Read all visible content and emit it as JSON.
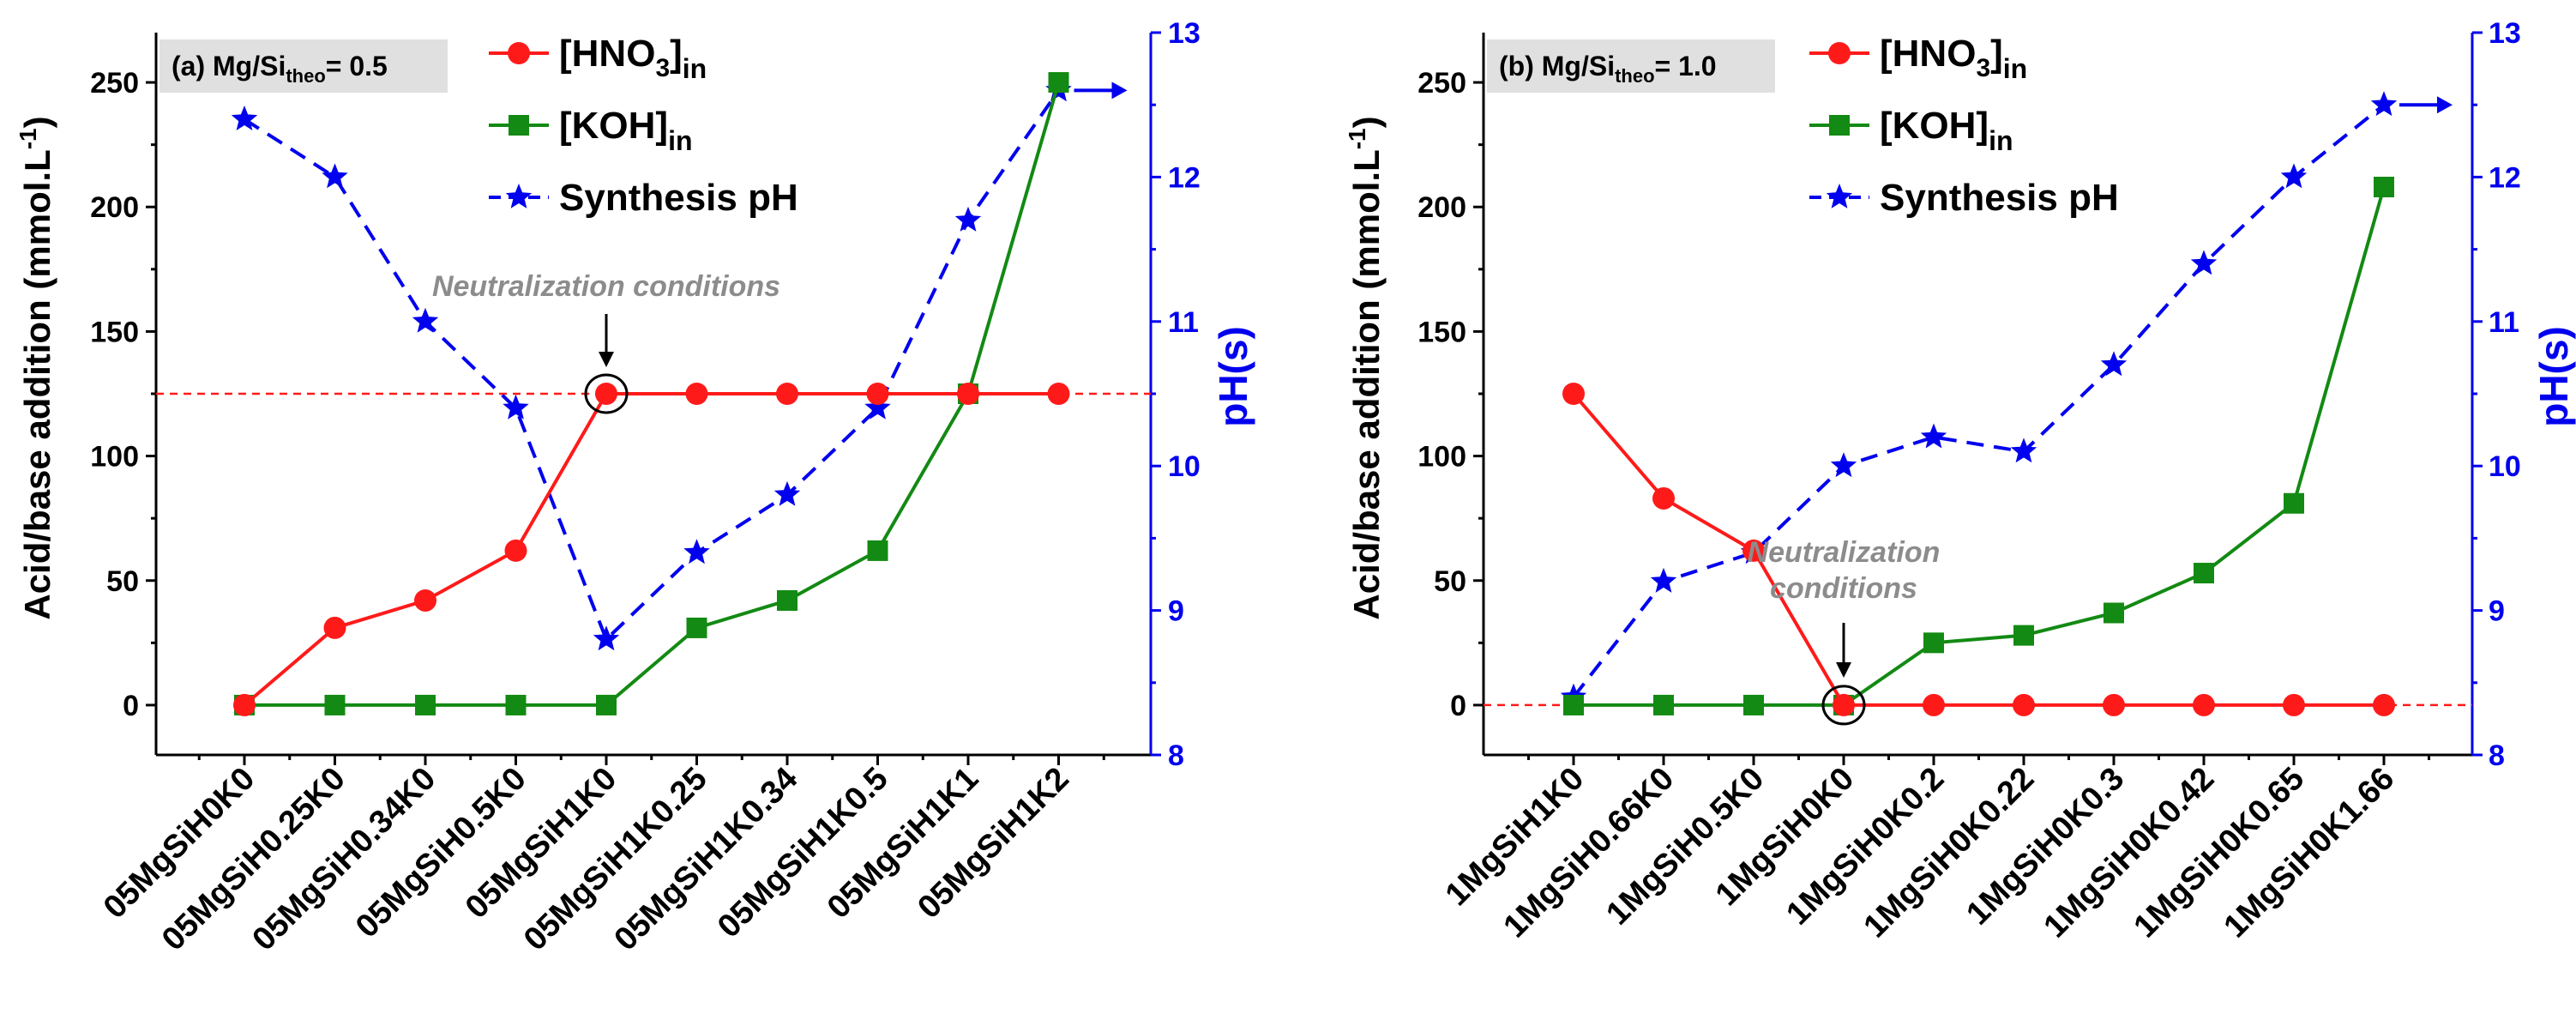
{
  "colors": {
    "hno3": "#ff1a1a",
    "koh": "#138a13",
    "ph": "#0000ee",
    "ref_line": "#ff1a1a",
    "title_box": "#e0e0e0",
    "annotation": "#8c8c8c"
  },
  "chart_data": [
    {
      "type": "line",
      "title_prefix": "(a) Mg/Si",
      "title_sub": "theo",
      "title_suffix": "= 0.5",
      "xlabel": "",
      "ylabel": "Acid/base addition (mmol.L",
      "ylabel_sup": "-1",
      "ylabel_end": ")",
      "ylabel_right": "pH(s)",
      "ylim": [
        -20,
        270
      ],
      "yticks": [
        0,
        50,
        100,
        150,
        200,
        250
      ],
      "y2lim": [
        8,
        13
      ],
      "y2ticks": [
        8,
        9,
        10,
        11,
        12,
        13
      ],
      "categories": [
        "05MgSiH0K0",
        "05MgSiH0.25K0",
        "05MgSiH0.34K0",
        "05MgSiH0.5K0",
        "05MgSiH1K0",
        "05MgSiH1K0.25",
        "05MgSiH1K0.34",
        "05MgSiH1K0.5",
        "05MgSiH1K1",
        "05MgSiH1K2"
      ],
      "series": [
        {
          "name": "[HNO3]in",
          "label_main": "[HNO",
          "label_sub3": "3",
          "label_close": "]",
          "label_sub": "in",
          "axis": "left",
          "marker": "circle",
          "style": "solid",
          "values": [
            0,
            31,
            42,
            62,
            125,
            125,
            125,
            125,
            125,
            125
          ]
        },
        {
          "name": "[KOH]in",
          "label_main": "[KOH]",
          "label_sub": "in",
          "axis": "left",
          "marker": "square",
          "style": "solid",
          "values": [
            0,
            0,
            0,
            0,
            0,
            31,
            42,
            62,
            125,
            250
          ]
        },
        {
          "name": "Synthesis pH",
          "label_main": "Synthesis pH",
          "axis": "right",
          "marker": "star",
          "style": "dashed",
          "values": [
            12.4,
            12.0,
            11.0,
            10.4,
            8.8,
            9.4,
            9.8,
            10.4,
            11.7,
            12.6
          ]
        }
      ],
      "reference_line": 125,
      "annotation": {
        "lines": [
          "Neutralization conditions"
        ],
        "category_index": 4,
        "value": 125
      }
    },
    {
      "type": "line",
      "title_prefix": "(b) Mg/Si",
      "title_sub": "theo",
      "title_suffix": "= 1.0",
      "xlabel": "",
      "ylabel": "Acid/base addition (mmol.L",
      "ylabel_sup": "-1",
      "ylabel_end": ")",
      "ylabel_right": "pH(s)",
      "ylim": [
        -20,
        270
      ],
      "yticks": [
        0,
        50,
        100,
        150,
        200,
        250
      ],
      "y2lim": [
        8,
        13
      ],
      "y2ticks": [
        8,
        9,
        10,
        11,
        12,
        13
      ],
      "categories": [
        "1MgSiH1K0",
        "1MgSiH0.66K0",
        "1MgSiH0.5K0",
        "1MgSiH0K0",
        "1MgSiH0K0.2",
        "1MgSiH0K0.22",
        "1MgSiH0K0.3",
        "1MgSiH0K0.42",
        "1MgSiH0K0.65",
        "1MgSiH0K1.66"
      ],
      "series": [
        {
          "name": "[HNO3]in",
          "label_main": "[HNO",
          "label_sub3": "3",
          "label_close": "]",
          "label_sub": "in",
          "axis": "left",
          "marker": "circle",
          "style": "solid",
          "values": [
            125,
            83,
            62,
            0,
            0,
            0,
            0,
            0,
            0,
            0
          ]
        },
        {
          "name": "[KOH]in",
          "label_main": "[KOH]",
          "label_sub": "in",
          "axis": "left",
          "marker": "square",
          "style": "solid",
          "values": [
            0,
            0,
            0,
            0,
            25,
            28,
            37,
            53,
            81,
            208
          ]
        },
        {
          "name": "Synthesis pH",
          "label_main": "Synthesis pH",
          "axis": "right",
          "marker": "star",
          "style": "dashed",
          "values": [
            8.4,
            9.2,
            9.4,
            10.0,
            10.2,
            10.1,
            10.7,
            11.4,
            12.0,
            12.5
          ]
        }
      ],
      "reference_line": 0,
      "annotation": {
        "lines": [
          "Neutralization",
          "conditions"
        ],
        "category_index": 3,
        "value": 0
      }
    }
  ]
}
